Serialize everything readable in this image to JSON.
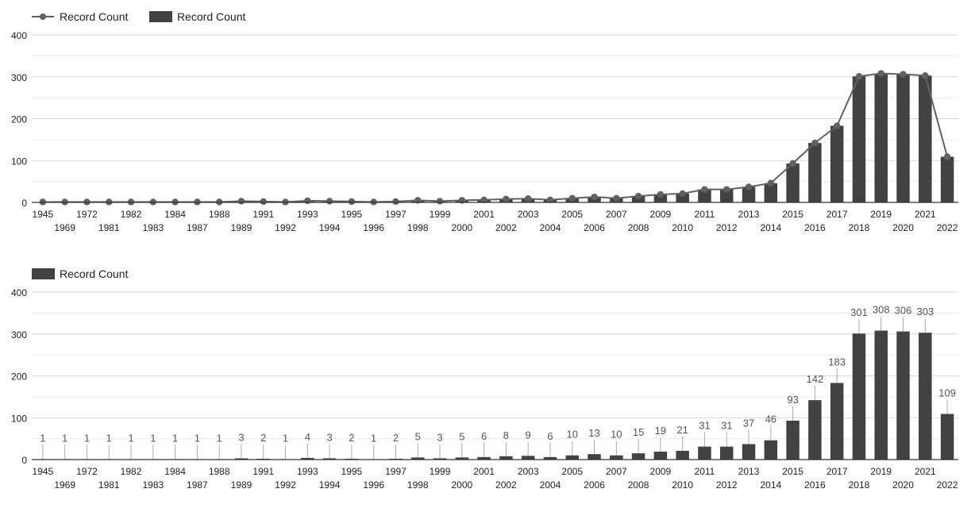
{
  "colors": {
    "bar": "#424242",
    "line": "#616161",
    "grid": "#dddddd",
    "axis": "#333333",
    "text": "#222222",
    "label": "#555555"
  },
  "chart_data": [
    {
      "type": "bar",
      "combo": "bar+line",
      "legend": [
        {
          "type": "line",
          "label": "Record Count"
        },
        {
          "type": "bar",
          "label": "Record Count"
        }
      ],
      "legend_position": "top-left",
      "categories": [
        "1945",
        "1969",
        "1972",
        "1981",
        "1982",
        "1983",
        "1984",
        "1987",
        "1988",
        "1989",
        "1991",
        "1992",
        "1993",
        "1994",
        "1995",
        "1996",
        "1997",
        "1998",
        "1999",
        "2000",
        "2001",
        "2002",
        "2003",
        "2004",
        "2005",
        "2006",
        "2007",
        "2008",
        "2009",
        "2010",
        "2011",
        "2012",
        "2013",
        "2014",
        "2015",
        "2016",
        "2017",
        "2018",
        "2019",
        "2020",
        "2021",
        "2022"
      ],
      "series": [
        {
          "name": "Record Count",
          "type": "line",
          "values": [
            1,
            1,
            1,
            1,
            1,
            1,
            1,
            1,
            1,
            3,
            2,
            1,
            4,
            3,
            2,
            1,
            2,
            5,
            3,
            5,
            6,
            8,
            9,
            6,
            10,
            13,
            10,
            15,
            19,
            21,
            31,
            31,
            37,
            46,
            93,
            142,
            183,
            301,
            308,
            306,
            303,
            109
          ]
        },
        {
          "name": "Record Count",
          "type": "bar",
          "values": [
            1,
            1,
            1,
            1,
            1,
            1,
            1,
            1,
            1,
            3,
            2,
            1,
            4,
            3,
            2,
            1,
            2,
            5,
            3,
            5,
            6,
            8,
            9,
            6,
            10,
            13,
            10,
            15,
            19,
            21,
            31,
            31,
            37,
            46,
            93,
            142,
            183,
            301,
            308,
            306,
            303,
            109
          ]
        }
      ],
      "yticks": [
        0,
        100,
        200,
        300,
        400
      ],
      "ylim": [
        0,
        400
      ],
      "grid": true,
      "data_labels": false
    },
    {
      "type": "bar",
      "legend": [
        {
          "type": "bar",
          "label": "Record Count"
        }
      ],
      "legend_position": "top-left",
      "categories": [
        "1945",
        "1969",
        "1972",
        "1981",
        "1982",
        "1983",
        "1984",
        "1987",
        "1988",
        "1989",
        "1991",
        "1992",
        "1993",
        "1994",
        "1995",
        "1996",
        "1997",
        "1998",
        "1999",
        "2000",
        "2001",
        "2002",
        "2003",
        "2004",
        "2005",
        "2006",
        "2007",
        "2008",
        "2009",
        "2010",
        "2011",
        "2012",
        "2013",
        "2014",
        "2015",
        "2016",
        "2017",
        "2018",
        "2019",
        "2020",
        "2021",
        "2022"
      ],
      "series": [
        {
          "name": "Record Count",
          "type": "bar",
          "values": [
            1,
            1,
            1,
            1,
            1,
            1,
            1,
            1,
            1,
            3,
            2,
            1,
            4,
            3,
            2,
            1,
            2,
            5,
            3,
            5,
            6,
            8,
            9,
            6,
            10,
            13,
            10,
            15,
            19,
            21,
            31,
            31,
            37,
            46,
            93,
            142,
            183,
            301,
            308,
            306,
            303,
            109
          ]
        }
      ],
      "yticks": [
        0,
        100,
        200,
        300,
        400
      ],
      "ylim": [
        0,
        400
      ],
      "grid": true,
      "data_labels": true
    }
  ]
}
